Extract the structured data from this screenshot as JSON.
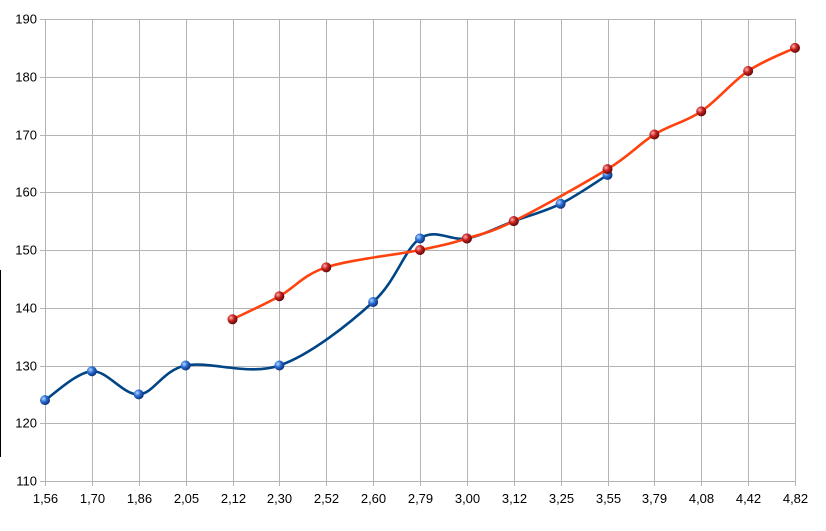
{
  "chart_data": {
    "type": "line",
    "title": "",
    "xlabel": "",
    "ylabel": "",
    "categories": [
      "1,56",
      "1,70",
      "1,86",
      "2,05",
      "2,12",
      "2,30",
      "2,52",
      "2,60",
      "2,79",
      "3,00",
      "3,12",
      "3,25",
      "3,55",
      "3,79",
      "4,08",
      "4,42",
      "4,82"
    ],
    "ylim": [
      110,
      190
    ],
    "yticks": [
      110,
      120,
      130,
      140,
      150,
      160,
      170,
      180,
      190
    ],
    "yticks_labels": [
      "110",
      "120",
      "130",
      "140",
      "150",
      "160",
      "170",
      "180",
      "190"
    ],
    "grid": true,
    "legend": "none",
    "series": [
      {
        "color": "#004586",
        "marker_color": "#2a6fd6",
        "points": [
          [
            0,
            124
          ],
          [
            1,
            129
          ],
          [
            2,
            125
          ],
          [
            3,
            130
          ],
          [
            5,
            130
          ],
          [
            7,
            141
          ],
          [
            8,
            152
          ],
          [
            9,
            152
          ],
          [
            10,
            155
          ],
          [
            11,
            158
          ],
          [
            12,
            163
          ]
        ]
      },
      {
        "color": "#ff420e",
        "marker_color": "#c9211e",
        "points": [
          [
            4,
            138
          ],
          [
            5,
            142
          ],
          [
            6,
            147
          ],
          [
            8,
            150
          ],
          [
            9,
            152
          ],
          [
            10,
            155
          ],
          [
            12,
            164
          ],
          [
            13,
            170
          ],
          [
            14,
            174
          ],
          [
            15,
            181
          ],
          [
            16,
            185
          ]
        ]
      }
    ]
  }
}
